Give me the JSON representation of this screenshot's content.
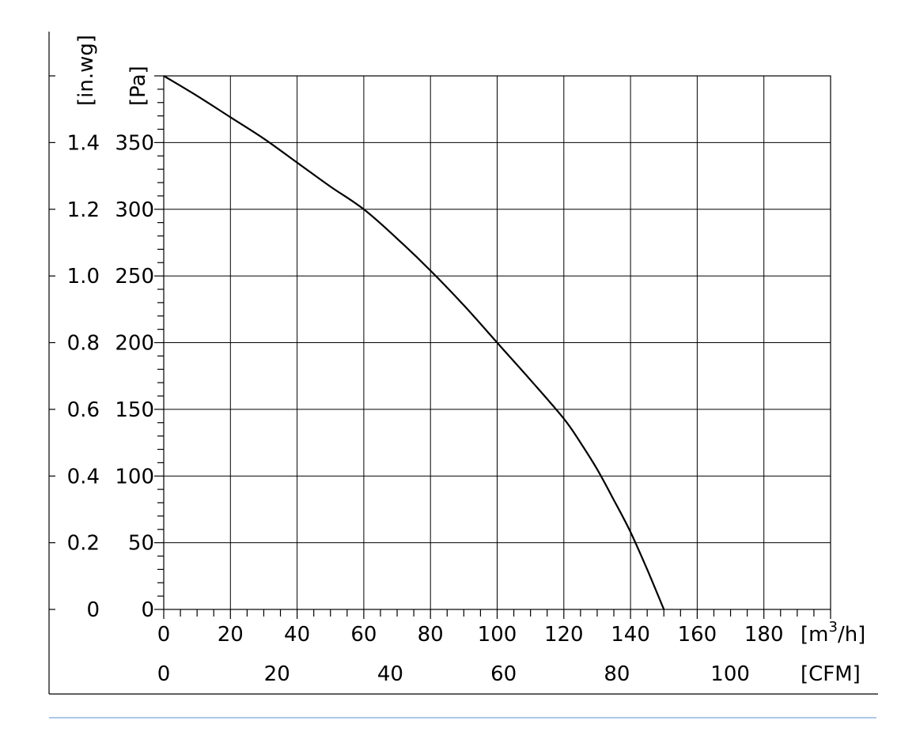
{
  "chart_data": {
    "type": "line",
    "x_primary": {
      "unit_label": "[m",
      "unit_sup": "3",
      "unit_tail": "/h]",
      "ticks": [
        0,
        20,
        40,
        60,
        80,
        100,
        120,
        140,
        160,
        180
      ],
      "range": [
        0,
        200
      ]
    },
    "x_secondary": {
      "unit_label": "[CFM]",
      "ticks": [
        0,
        20,
        40,
        60,
        80,
        100
      ]
    },
    "y_primary": {
      "unit_label": "[Pa]",
      "ticks": [
        0,
        50,
        100,
        150,
        200,
        250,
        300,
        350
      ],
      "range": [
        0,
        400
      ]
    },
    "y_secondary": {
      "unit_label": "[in.wg]",
      "ticks": [
        "0",
        "0.2",
        "0.4",
        "0.6",
        "0.8",
        "1.0",
        "1.2",
        "1.4"
      ]
    },
    "grid": true,
    "series": [
      {
        "x": [
          0,
          10,
          20,
          30,
          40,
          50,
          60,
          70,
          80,
          90,
          100,
          110,
          120,
          125,
          130,
          135,
          140,
          145,
          150
        ],
        "y": [
          400,
          385,
          369,
          353,
          335,
          317,
          300,
          278,
          254,
          228,
          200,
          172,
          143,
          125,
          105,
          82,
          58,
          30,
          0
        ]
      }
    ]
  }
}
